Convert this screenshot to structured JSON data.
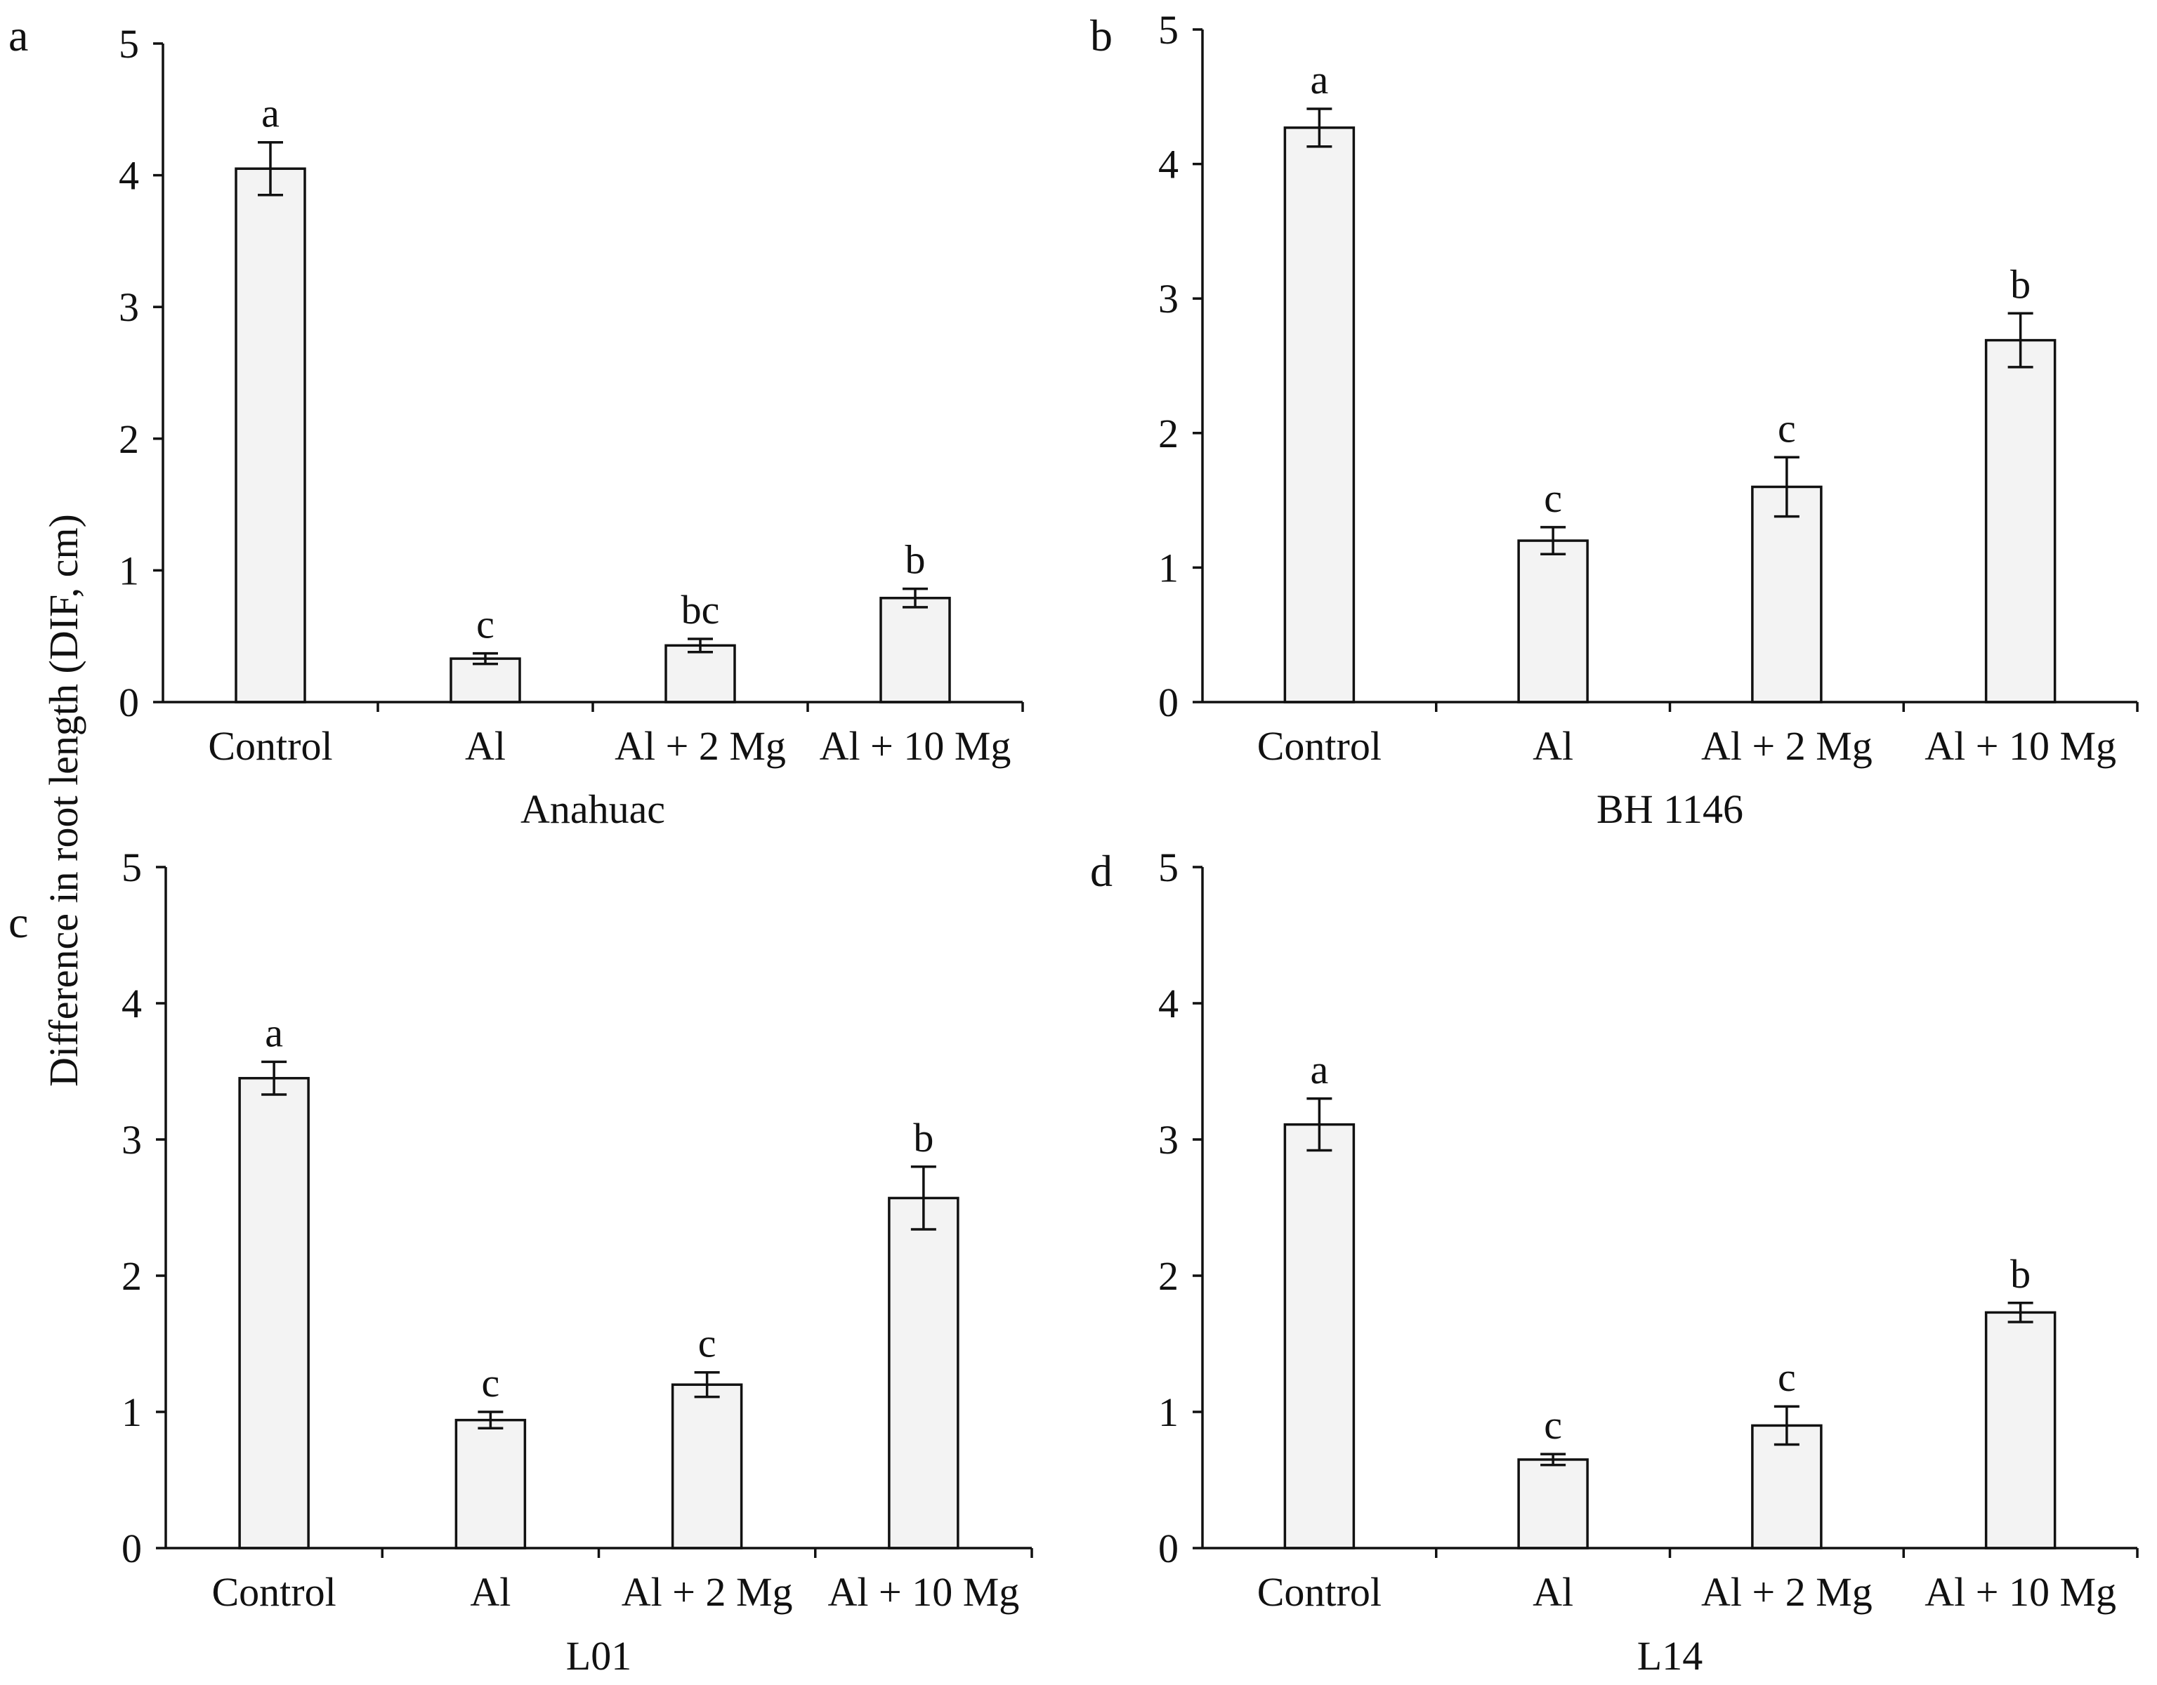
{
  "ylabel": "Difference in root length (DIF, cm)",
  "chart_data": [
    {
      "type": "bar",
      "panel": "a",
      "xlabel": "Anahuac",
      "ylim": [
        0,
        5
      ],
      "yticks": [
        "0",
        "1",
        "2",
        "3",
        "4",
        "5"
      ],
      "categories": [
        "Control",
        "Al",
        "Al + 2 Mg",
        "Al + 10 Mg"
      ],
      "values": [
        4.05,
        0.33,
        0.43,
        0.79
      ],
      "errors": [
        0.2,
        0.04,
        0.05,
        0.07
      ],
      "significance": [
        "a",
        "c",
        "bc",
        "b"
      ]
    },
    {
      "type": "bar",
      "panel": "b",
      "xlabel": "BH 1146",
      "ylim": [
        0,
        5
      ],
      "yticks": [
        "0",
        "1",
        "2",
        "3",
        "4",
        "5"
      ],
      "categories": [
        "Control",
        "Al",
        "Al + 2 Mg",
        "Al + 10 Mg"
      ],
      "values": [
        4.27,
        1.2,
        1.6,
        2.69
      ],
      "errors": [
        0.14,
        0.1,
        0.22,
        0.2
      ],
      "significance": [
        "a",
        "c",
        "c",
        "b"
      ]
    },
    {
      "type": "bar",
      "panel": "c",
      "xlabel": "L01",
      "ylim": [
        0,
        5
      ],
      "yticks": [
        "0",
        "1",
        "2",
        "3",
        "4",
        "5"
      ],
      "categories": [
        "Control",
        "Al",
        "Al + 2 Mg",
        "Al + 10 Mg"
      ],
      "values": [
        3.45,
        0.94,
        1.2,
        2.57
      ],
      "errors": [
        0.12,
        0.06,
        0.09,
        0.23
      ],
      "significance": [
        "a",
        "c",
        "c",
        "b"
      ]
    },
    {
      "type": "bar",
      "panel": "d",
      "xlabel": "L14",
      "ylim": [
        0,
        5
      ],
      "yticks": [
        "0",
        "1",
        "2",
        "3",
        "4",
        "5"
      ],
      "categories": [
        "Control",
        "Al",
        "Al + 2 Mg",
        "Al + 10 Mg"
      ],
      "values": [
        3.11,
        0.65,
        0.9,
        1.73
      ],
      "errors": [
        0.19,
        0.04,
        0.14,
        0.07
      ],
      "significance": [
        "a",
        "c",
        "c",
        "b"
      ]
    }
  ]
}
